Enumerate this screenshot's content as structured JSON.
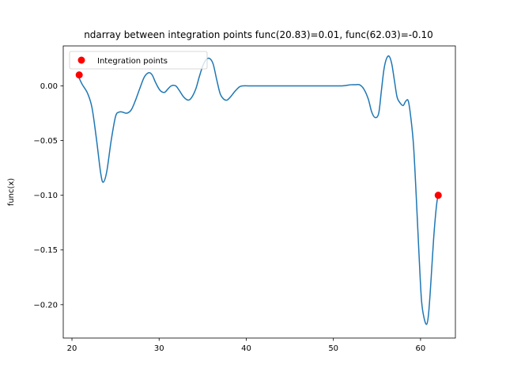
{
  "chart_data": {
    "type": "line",
    "title": "ndarray between integration points func(20.83)=0.01, func(62.03)=-0.10",
    "xlabel": "",
    "ylabel": "func(x)",
    "xlim": [
      19.0,
      64.0
    ],
    "ylim": [
      -0.2305,
      0.0365
    ],
    "xticks": [
      20,
      30,
      40,
      50,
      60
    ],
    "yticks": [
      0.0,
      -0.05,
      -0.1,
      -0.15,
      -0.2
    ],
    "xtick_labels": [
      "20",
      "30",
      "40",
      "50",
      "60"
    ],
    "ytick_labels": [
      "0.00",
      "−0.05",
      "−0.10",
      "−0.15",
      "−0.20"
    ],
    "grid": false,
    "legend": {
      "placement": "upper left",
      "entries": [
        "Integration points"
      ]
    },
    "series": [
      {
        "color": "#1f77b4",
        "x": [
          20.83,
          21.2,
          21.8,
          22.3,
          22.8,
          23.3,
          23.6,
          24.0,
          24.5,
          25.0,
          25.4,
          25.8,
          26.3,
          26.8,
          27.3,
          27.8,
          28.3,
          28.8,
          29.2,
          29.6,
          30.1,
          30.6,
          31.0,
          31.4,
          31.9,
          32.3,
          32.8,
          33.3,
          33.7,
          34.2,
          34.6,
          35.0,
          35.4,
          35.8,
          36.2,
          36.6,
          37.0,
          37.4,
          37.8,
          38.2,
          38.7,
          39.2,
          39.6,
          40.2,
          41.0,
          42.0,
          43.0,
          45.0,
          47.0,
          49.0,
          51.0,
          52.0,
          52.5,
          53.0,
          53.5,
          54.0,
          54.4,
          54.8,
          55.2,
          55.5,
          55.8,
          56.1,
          56.4,
          56.7,
          57.0,
          57.3,
          57.6,
          58.0,
          58.3,
          58.6,
          58.9,
          59.2,
          59.5,
          59.8,
          60.1,
          60.4,
          60.7,
          60.9,
          61.1,
          61.3,
          61.5,
          61.7,
          61.9,
          62.03
        ],
        "y": [
          0.007,
          0.001,
          -0.007,
          -0.02,
          -0.048,
          -0.08,
          -0.088,
          -0.078,
          -0.05,
          -0.028,
          -0.024,
          -0.024,
          -0.025,
          -0.022,
          -0.013,
          -0.002,
          0.008,
          0.012,
          0.01,
          0.003,
          -0.004,
          -0.006,
          -0.003,
          0.0,
          0.0,
          -0.004,
          -0.01,
          -0.013,
          -0.011,
          -0.003,
          0.008,
          0.018,
          0.024,
          0.025,
          0.02,
          0.006,
          -0.007,
          -0.012,
          -0.013,
          -0.01,
          -0.005,
          -0.001,
          0.0,
          0.0,
          0.0,
          0.0,
          0.0,
          0.0,
          0.0,
          0.0,
          0.0,
          0.001,
          0.001,
          0.001,
          -0.003,
          -0.012,
          -0.024,
          -0.029,
          -0.025,
          -0.005,
          0.015,
          0.025,
          0.027,
          0.02,
          0.005,
          -0.01,
          -0.015,
          -0.018,
          -0.014,
          -0.014,
          -0.03,
          -0.055,
          -0.1,
          -0.15,
          -0.195,
          -0.212,
          -0.218,
          -0.21,
          -0.19,
          -0.165,
          -0.14,
          -0.12,
          -0.105,
          -0.101
        ]
      }
    ],
    "scatter": {
      "name": "Integration points",
      "color": "#ff0000",
      "x": [
        20.83,
        62.03
      ],
      "y": [
        0.01,
        -0.1
      ]
    }
  }
}
